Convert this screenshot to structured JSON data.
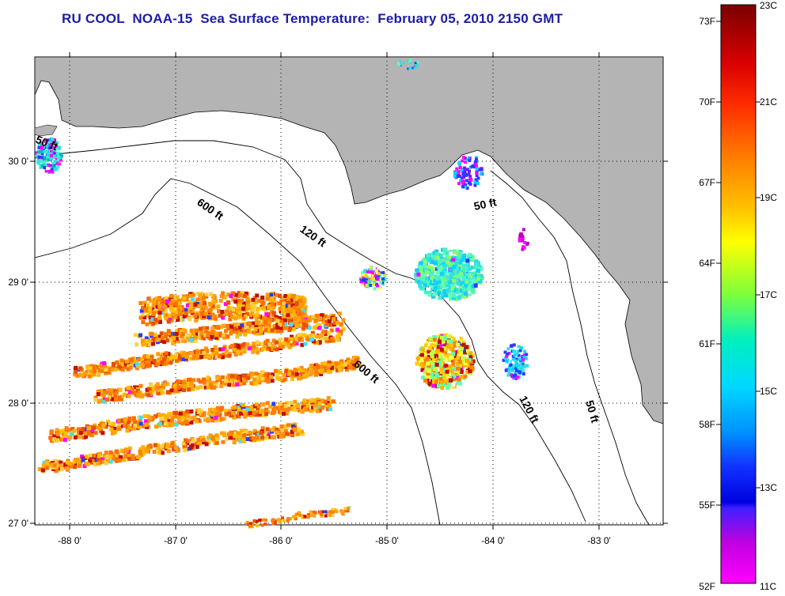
{
  "title": "RU COOL  NOAA-15  Sea Surface Temperature:  February 05, 2010 2150 GMT",
  "map": {
    "lon_labels": [
      "-88 0'",
      "-87 0'",
      "-86 0'",
      "-85 0'",
      "-84 0'",
      "-83 0'"
    ],
    "lat_labels": [
      "30 0'",
      "29 0'",
      "28 0'",
      "27 0'"
    ],
    "contours": [
      {
        "name": "contour-50ft-west",
        "text": "50 ft"
      },
      {
        "name": "contour-600ft-north",
        "text": "600 ft"
      },
      {
        "name": "contour-120ft-north",
        "text": "120 ft"
      },
      {
        "name": "contour-50ft-east",
        "text": "50 ft"
      },
      {
        "name": "contour-600ft-south",
        "text": "600 ft"
      },
      {
        "name": "contour-120ft-south",
        "text": "120 ft"
      },
      {
        "name": "contour-50ft-south",
        "text": "50 ft"
      }
    ],
    "colors": {
      "land": "#b4b4b4",
      "water": "#ffffff",
      "title": "#1c1ca8"
    }
  },
  "colorbar": {
    "fahrenheit_labels": [
      "73F",
      "70F",
      "67F",
      "64F",
      "61F",
      "58F",
      "55F",
      "52F"
    ],
    "celsius_labels": [
      "23C",
      "21C",
      "19C",
      "17C",
      "15C",
      "13C",
      "11C"
    ]
  }
}
